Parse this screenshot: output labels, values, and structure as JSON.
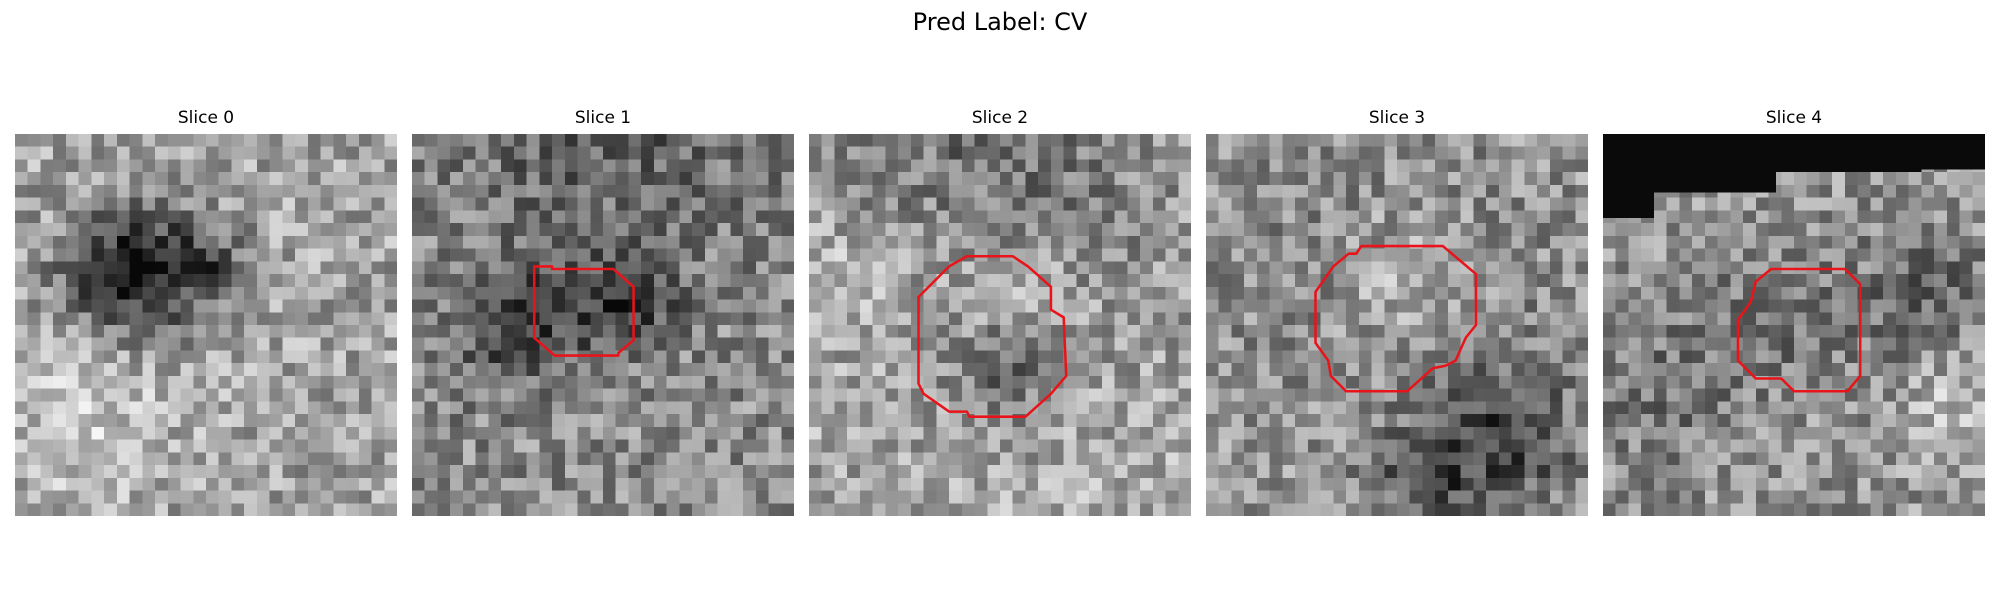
{
  "figure": {
    "title": "Pred Label: CV"
  },
  "panels": [
    {
      "title": "Slice 0",
      "has_contour": false,
      "dark_region": "none"
    },
    {
      "title": "Slice 1",
      "has_contour": true,
      "dark_region": "none"
    },
    {
      "title": "Slice 2",
      "has_contour": true,
      "dark_region": "none"
    },
    {
      "title": "Slice 3",
      "has_contour": true,
      "dark_region": "none"
    },
    {
      "title": "Slice 4",
      "has_contour": true,
      "dark_region": "top-left black block"
    }
  ],
  "colors": {
    "contour": "#e8141a",
    "background": "#ffffff",
    "pixel_light": "#f0f0f0",
    "pixel_dark": "#0a0a0a"
  }
}
